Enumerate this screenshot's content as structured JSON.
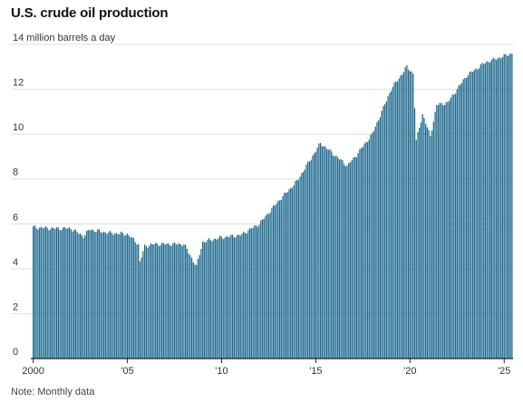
{
  "title": "U.S. crude oil production",
  "note": "Note: Monthly data",
  "chart_data": {
    "type": "bar",
    "title": "U.S. crude oil production",
    "ylabel": "million barrels a day",
    "y_unit_label": "14 million barrels a day",
    "ylim": [
      0,
      14
    ],
    "y_ticks": [
      0,
      2,
      4,
      6,
      8,
      10,
      12,
      14
    ],
    "y_tick_labels": [
      "0",
      "2",
      "4",
      "6",
      "8",
      "10",
      "12",
      "14 million barrels a day"
    ],
    "x_tick_labels": [
      "2000",
      "'05",
      "'10",
      "'15",
      "'20",
      "'25"
    ],
    "x_tick_years": [
      2000,
      2005,
      2010,
      2015,
      2020,
      2025
    ],
    "grid": true,
    "color": "#1f6a8f",
    "frequency": "monthly",
    "start": "2000-01",
    "end": "2025-06",
    "annual_anchors": [
      {
        "x": "2000-01",
        "y": 5.85
      },
      {
        "x": "2001-01",
        "y": 5.8
      },
      {
        "x": "2002-01",
        "y": 5.8
      },
      {
        "x": "2002-09",
        "y": 5.45
      },
      {
        "x": "2003-01",
        "y": 5.75
      },
      {
        "x": "2004-01",
        "y": 5.6
      },
      {
        "x": "2005-01",
        "y": 5.55
      },
      {
        "x": "2005-08",
        "y": 5.1
      },
      {
        "x": "2005-09",
        "y": 4.3
      },
      {
        "x": "2005-12",
        "y": 5.0
      },
      {
        "x": "2006-06",
        "y": 5.1
      },
      {
        "x": "2007-01",
        "y": 5.1
      },
      {
        "x": "2008-01",
        "y": 5.1
      },
      {
        "x": "2008-09",
        "y": 4.1
      },
      {
        "x": "2009-01",
        "y": 5.2
      },
      {
        "x": "2010-01",
        "y": 5.4
      },
      {
        "x": "2011-01",
        "y": 5.5
      },
      {
        "x": "2012-01",
        "y": 6.0
      },
      {
        "x": "2013-01",
        "y": 7.0
      },
      {
        "x": "2014-01",
        "y": 7.9
      },
      {
        "x": "2015-04",
        "y": 9.6
      },
      {
        "x": "2016-09",
        "y": 8.6
      },
      {
        "x": "2017-01",
        "y": 8.9
      },
      {
        "x": "2018-01",
        "y": 10.0
      },
      {
        "x": "2019-01",
        "y": 12.0
      },
      {
        "x": "2019-11",
        "y": 13.0
      },
      {
        "x": "2020-03",
        "y": 12.7
      },
      {
        "x": "2020-05",
        "y": 9.7
      },
      {
        "x": "2020-09",
        "y": 10.9
      },
      {
        "x": "2021-02",
        "y": 9.9
      },
      {
        "x": "2021-06",
        "y": 11.3
      },
      {
        "x": "2022-01",
        "y": 11.4
      },
      {
        "x": "2023-01",
        "y": 12.6
      },
      {
        "x": "2024-01",
        "y": 13.2
      },
      {
        "x": "2025-06",
        "y": 13.6
      }
    ]
  }
}
